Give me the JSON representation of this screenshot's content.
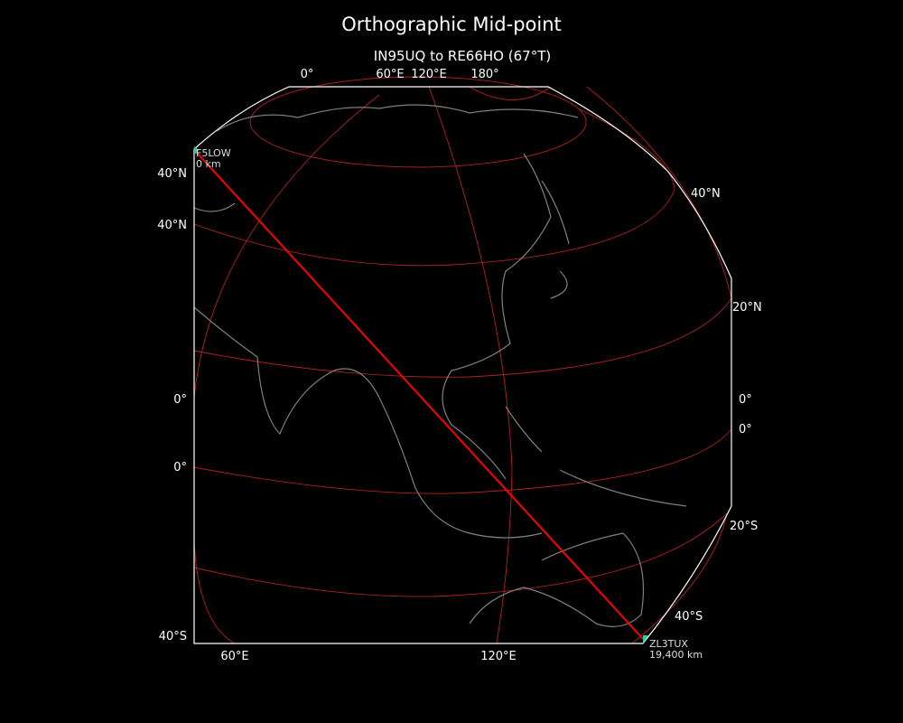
{
  "title": "Orthographic Mid-point",
  "subtitle": "IN95UQ to RE66HO (67°T)",
  "colors": {
    "background": "#000000",
    "text": "#ffffff",
    "graticule": "#b22222",
    "path": "#ff0000",
    "coast": "#808080",
    "marker": "#1fd1a0"
  },
  "top_labels": [
    "0°",
    "60°E",
    "120°E",
    "180°"
  ],
  "left_labels": [
    "40°N",
    "40°N",
    "0°",
    "0°",
    "40°S"
  ],
  "right_labels": [
    "40°N",
    "20°N",
    "0°",
    "0°",
    "20°S",
    "40°S"
  ],
  "bottom_labels": [
    "60°E",
    "120°E"
  ],
  "start": {
    "call": "F5LOW",
    "dist": "0 km"
  },
  "end": {
    "call": "ZL3TUX",
    "dist": "19,400 km"
  }
}
